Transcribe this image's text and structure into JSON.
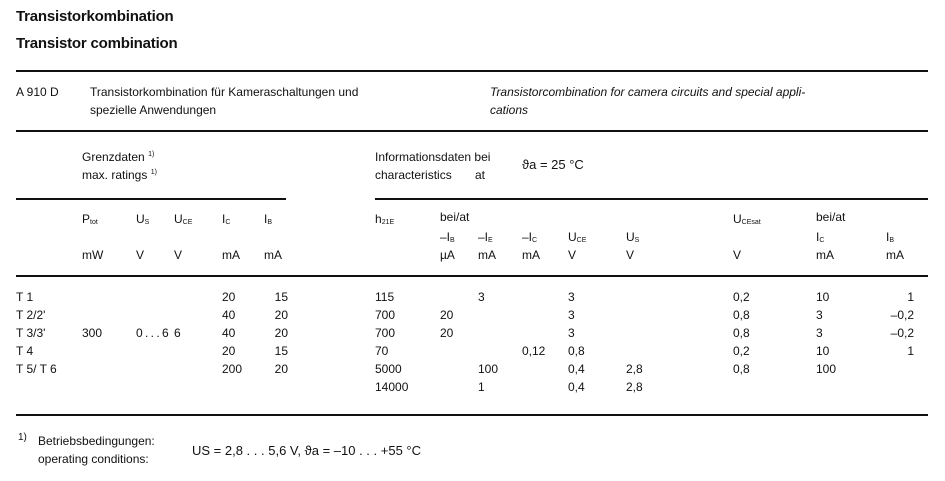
{
  "title_de": "Transistorkombination",
  "title_en": "Transistor combination",
  "device": {
    "type": "A 910 D",
    "desc_de_1": "Transistorkombination für Kameraschaltungen und",
    "desc_de_2": "spezielle Anwendungen",
    "desc_en_1": "Transistorcombination for camera circuits and special appli-",
    "desc_en_2": "cations"
  },
  "sections": {
    "limits_de": "Grenzdaten",
    "limits_en": "max. ratings",
    "footnote_mark": "1)",
    "char_de": "Informationsdaten bei",
    "char_en": "characteristics",
    "char_at": "at",
    "char_condition": "ϑa = 25 °C"
  },
  "columns": [
    {
      "sym": "",
      "sub": "",
      "top": "",
      "unit": ""
    },
    {
      "sym": "P",
      "sub": "tot",
      "top": "",
      "unit": "mW"
    },
    {
      "sym": "U",
      "sub": "S",
      "top": "",
      "unit": "V"
    },
    {
      "sym": "U",
      "sub": "CE",
      "top": "",
      "unit": "V"
    },
    {
      "sym": "I",
      "sub": "C",
      "top": "",
      "unit": "mA"
    },
    {
      "sym": "I",
      "sub": "B",
      "top": "",
      "unit": "mA"
    },
    {
      "sym": "h",
      "sub": "21E",
      "top": "",
      "unit": "",
      "row1": true
    },
    {
      "sym": "–I",
      "sub": "B",
      "top": "bei/at",
      "unit": "µA"
    },
    {
      "sym": "–I",
      "sub": "E",
      "top": "",
      "unit": "mA"
    },
    {
      "sym": "–I",
      "sub": "C",
      "top": "",
      "unit": "mA"
    },
    {
      "sym": "U",
      "sub": "CE",
      "top": "",
      "unit": "V"
    },
    {
      "sym": "U",
      "sub": "S",
      "top": "",
      "unit": "V"
    },
    {
      "sym": "U",
      "sub": "CEsat",
      "top": "",
      "unit": "V",
      "row1": true
    },
    {
      "sym": "I",
      "sub": "C",
      "top": "bei/at",
      "unit": "mA"
    },
    {
      "sym": "I",
      "sub": "B",
      "top": "",
      "unit": "mA"
    }
  ],
  "rows": [
    [
      "T 1",
      "",
      "",
      "",
      "20",
      "15",
      "115",
      "",
      "3",
      "",
      "3",
      "",
      "0,2",
      "10",
      "1"
    ],
    [
      "T 2/2'",
      "",
      "",
      "",
      "40",
      "20",
      "700",
      "20",
      "",
      "",
      "3",
      "",
      "0,8",
      "3",
      "–0,2"
    ],
    [
      "T 3/3'",
      "300",
      "0 . . . 6",
      "6",
      "40",
      "20",
      "700",
      "20",
      "",
      "",
      "3",
      "",
      "0,8",
      "3",
      "–0,2"
    ],
    [
      "T 4",
      "",
      "",
      "",
      "20",
      "15",
      "70",
      "",
      "",
      "0,12",
      "0,8",
      "",
      "0,2",
      "10",
      "1"
    ],
    [
      "T 5/ T 6",
      "",
      "",
      "",
      "200",
      "20",
      "5000",
      "",
      "100",
      "",
      "0,4",
      "2,8",
      "0,8",
      "100",
      ""
    ],
    [
      "",
      "",
      "",
      "",
      "",
      "",
      "14000",
      "",
      "1",
      "",
      "0,4",
      "2,8",
      "",
      "",
      ""
    ]
  ],
  "footnote": {
    "mark": "1)",
    "label_de": "Betriebsbedingungen:",
    "label_en": "operating conditions:",
    "conditions": "US = 2,8 . . . 5,6 V,  ϑa = –10 . . . +55 °C"
  }
}
